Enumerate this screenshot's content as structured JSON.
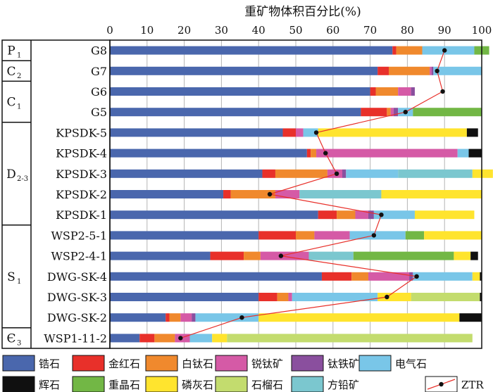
{
  "chart_data": {
    "type": "bar",
    "orientation": "horizontal",
    "stacked": true,
    "title": "重矿物体积百分比(%)",
    "xlim": [
      0,
      100
    ],
    "xticks": [
      "0",
      "10",
      "20",
      "30",
      "40",
      "50",
      "60",
      "70",
      "80",
      "90",
      "100"
    ],
    "grid": true,
    "legend_position": "bottom",
    "categories": [
      "G8",
      "G7",
      "G6",
      "G5",
      "KPSDK-5",
      "KPSDK-4",
      "KPSDK-3",
      "KPSDK-2",
      "KPSDK-1",
      "WSP2-5-1",
      "WSP2-4-1",
      "DWG-SK-4",
      "DWG-SK-3",
      "DWG-SK-2",
      "WSP1-11-2"
    ],
    "strata": [
      {
        "main": "P",
        "sub": "1",
        "rows": [
          0,
          0
        ]
      },
      {
        "main": "C",
        "sub": "2",
        "rows": [
          1,
          1
        ]
      },
      {
        "main": "C",
        "sub": "1",
        "rows": [
          2,
          3
        ]
      },
      {
        "main": "D",
        "sub": "2-3",
        "rows": [
          4,
          8
        ]
      },
      {
        "main": "S",
        "sub": "1",
        "rows": [
          9,
          13
        ]
      },
      {
        "main": "Є",
        "sub": "3",
        "rows": [
          14,
          14
        ]
      }
    ],
    "series": [
      {
        "name": "锆石",
        "color": "#4a67ad",
        "values": [
          76,
          72,
          70,
          67.5,
          46.5,
          53,
          41,
          30.5,
          56,
          40,
          27,
          57,
          40,
          15,
          8
        ]
      },
      {
        "name": "金红石",
        "color": "#e8302a",
        "values": [
          1,
          3,
          1.5,
          7,
          3.5,
          1,
          3.5,
          2,
          5,
          10,
          9,
          8,
          5,
          1,
          4
        ]
      },
      {
        "name": "白钛石",
        "color": "#f0892d",
        "values": [
          7,
          11,
          6,
          1,
          0,
          1.5,
          14,
          12,
          5,
          5,
          4.5,
          4.5,
          3,
          3,
          5.5
        ]
      },
      {
        "name": "锐钛矿",
        "color": "#d55aa6",
        "values": [
          0,
          0.5,
          3.5,
          0.8,
          2,
          38,
          4,
          6.5,
          3.5,
          9.5,
          13,
          11,
          1,
          3,
          4
        ]
      },
      {
        "name": "钛铁矿",
        "color": "#8a4f9e",
        "values": [
          0,
          0.5,
          1,
          1.2,
          0,
          0,
          1,
          0,
          1.5,
          0,
          0,
          1,
          0,
          1,
          0
        ]
      },
      {
        "name": "电气石",
        "color": "#79c6e8",
        "values": [
          14,
          13,
          0,
          4,
          4,
          3,
          14,
          0,
          11,
          15,
          0,
          16,
          23,
          17,
          6
        ]
      },
      {
        "name": "方铅矿",
        "color": "#7bc7cf",
        "values": [
          0,
          0,
          0,
          0,
          0,
          0,
          20,
          22,
          0,
          0,
          12,
          0,
          0,
          0,
          0
        ]
      },
      {
        "name": "重晶石",
        "color": "#72b745",
        "values": [
          4,
          0,
          0,
          18.5,
          0,
          0,
          0,
          0,
          0,
          5,
          27,
          0,
          0,
          0,
          0
        ]
      },
      {
        "name": "磷灰石",
        "color": "#ffe42e",
        "values": [
          0,
          0,
          0,
          0,
          40,
          0,
          5.5,
          27,
          16,
          15.5,
          4.5,
          2,
          9,
          54,
          4
        ]
      },
      {
        "name": "石榴石",
        "color": "#c3dc6e",
        "values": [
          0,
          0,
          0,
          0,
          0,
          0,
          0,
          0,
          0,
          0,
          0,
          0,
          18.5,
          0,
          66
        ]
      },
      {
        "name": "辉石",
        "color": "#101010",
        "values": [
          0,
          0,
          0,
          0,
          3,
          3.5,
          0,
          0,
          0,
          0,
          2,
          0.5,
          0.5,
          6,
          0
        ]
      }
    ],
    "ztr_series": {
      "name": "ZTR",
      "color": "#e8302a",
      "values": [
        90,
        88,
        89.5,
        79.5,
        55.5,
        58,
        61,
        43,
        73,
        71,
        46,
        82.5,
        74.5,
        35.5,
        19
      ]
    },
    "legend": [
      "锆石",
      "金红石",
      "白钛石",
      "锐钛矿",
      "钛铁矿",
      "电气石",
      "辉石",
      "重晶石",
      "磷灰石",
      "石榴石",
      "方铅矿",
      "ZTR"
    ]
  }
}
